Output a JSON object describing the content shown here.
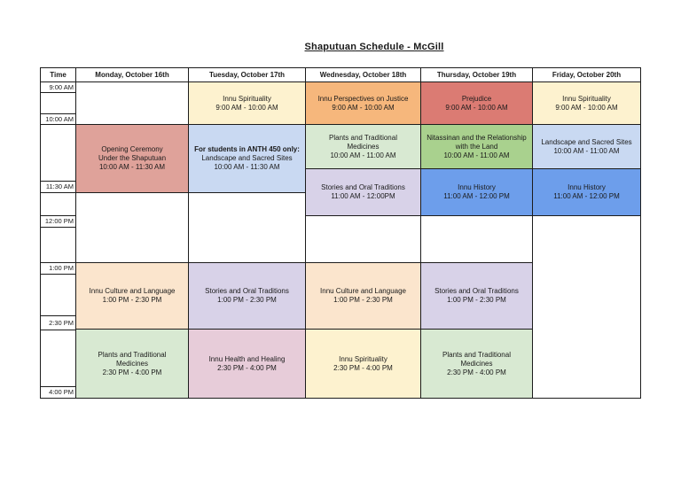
{
  "page": {
    "title": "Shaputuan Schedule - McGill"
  },
  "table": {
    "time_header": "Time",
    "days": [
      "Monday, October 16th",
      "Tuesday, October 17th",
      "Wednesday, October 18th",
      "Thursday, October 19th",
      "Friday, October 20th"
    ],
    "time_labels": [
      "9:00 AM",
      "10:00 AM",
      "11:30 AM",
      "12:00 PM",
      "1:00 PM",
      "2:30 PM",
      "4:00 PM"
    ],
    "colors": {
      "cream": "#fdf2cf",
      "orange": "#f6b77c",
      "red": "#db7b73",
      "rose": "#dfa29a",
      "lightblue": "#c9d9f2",
      "blue": "#6d9eeb",
      "lightgreen": "#d8e9d2",
      "green": "#a9d18e",
      "lavender": "#d8d2e8",
      "peach": "#fbe5cd",
      "pink": "#e7ccd9",
      "border": "#1c1c1c"
    },
    "events": [
      {
        "day": 0,
        "start": "10:00 AM",
        "end": "11:30 AM",
        "lines": [
          "Opening Ceremony",
          "Under the Shaputuan"
        ],
        "time_text": "10:00 AM - 11:30 AM",
        "color": "rose",
        "bold_first": false
      },
      {
        "day": 0,
        "start": "1:00 PM",
        "end": "2:30 PM",
        "lines": [
          "Innu Culture and Language"
        ],
        "time_text": "1:00 PM - 2:30 PM",
        "color": "peach",
        "bold_first": false
      },
      {
        "day": 0,
        "start": "2:30 PM",
        "end": "4:00 PM",
        "lines": [
          "Plants and Traditional",
          "Medicines"
        ],
        "time_text": "2:30 PM - 4:00 PM",
        "color": "lightgreen",
        "bold_first": false
      },
      {
        "day": 1,
        "start": "9:00 AM",
        "end": "10:00 AM",
        "lines": [
          "Innu Spirituality"
        ],
        "time_text": "9:00 AM - 10:00 AM",
        "color": "cream",
        "bold_first": false
      },
      {
        "day": 1,
        "start": "10:00 AM",
        "end": "11:30 AM",
        "lines": [
          "For students in ANTH 450 only:",
          "Landscape and Sacred Sites"
        ],
        "time_text": "10:00 AM - 11:30 AM",
        "color": "lightblue",
        "bold_first": true
      },
      {
        "day": 1,
        "start": "1:00 PM",
        "end": "2:30 PM",
        "lines": [
          "Stories and Oral Traditions"
        ],
        "time_text": "1:00 PM - 2:30 PM",
        "color": "lavender",
        "bold_first": false
      },
      {
        "day": 1,
        "start": "2:30 PM",
        "end": "4:00 PM",
        "lines": [
          "Innu Health and Healing"
        ],
        "time_text": "2:30 PM - 4:00 PM",
        "color": "pink",
        "bold_first": false
      },
      {
        "day": 2,
        "start": "9:00 AM",
        "end": "10:00 AM",
        "lines": [
          "Innu Perspectives on Justice"
        ],
        "time_text": "9:00 AM - 10:00 AM",
        "color": "orange",
        "bold_first": false
      },
      {
        "day": 2,
        "start": "10:00 AM",
        "end": "11:00 AM",
        "lines": [
          "Plants and Traditional",
          "Medicines"
        ],
        "time_text": "10:00 AM - 11:00 AM",
        "color": "lightgreen",
        "bold_first": false
      },
      {
        "day": 2,
        "start": "11:00 AM",
        "end": "12:00 PM",
        "lines": [
          "Stories and Oral Traditions"
        ],
        "time_text": "11:00 AM - 12:00PM",
        "color": "lavender",
        "bold_first": false
      },
      {
        "day": 2,
        "start": "1:00 PM",
        "end": "2:30 PM",
        "lines": [
          "Innu Culture and Language"
        ],
        "time_text": "1:00 PM - 2:30 PM",
        "color": "peach",
        "bold_first": false
      },
      {
        "day": 2,
        "start": "2:30 PM",
        "end": "4:00 PM",
        "lines": [
          "Innu Spirituality"
        ],
        "time_text": "2:30 PM - 4:00 PM",
        "color": "cream",
        "bold_first": false
      },
      {
        "day": 3,
        "start": "9:00 AM",
        "end": "10:00 AM",
        "lines": [
          "Prejudice"
        ],
        "time_text": "9:00 AM - 10:00 AM",
        "color": "red",
        "bold_first": false
      },
      {
        "day": 3,
        "start": "10:00 AM",
        "end": "11:00 AM",
        "lines": [
          "Nitassinan and the Relationship",
          "with the Land"
        ],
        "time_text": "10:00 AM - 11:00 AM",
        "color": "green",
        "bold_first": false
      },
      {
        "day": 3,
        "start": "11:00 AM",
        "end": "12:00 PM",
        "lines": [
          "Innu History"
        ],
        "time_text": "11:00 AM - 12:00 PM",
        "color": "blue",
        "bold_first": false
      },
      {
        "day": 3,
        "start": "1:00 PM",
        "end": "2:30 PM",
        "lines": [
          "Stories and Oral Traditions"
        ],
        "time_text": "1:00 PM - 2:30 PM",
        "color": "lavender",
        "bold_first": false
      },
      {
        "day": 3,
        "start": "2:30 PM",
        "end": "4:00 PM",
        "lines": [
          "Plants and Traditional",
          "Medicines"
        ],
        "time_text": "2:30 PM - 4:00 PM",
        "color": "lightgreen",
        "bold_first": false
      },
      {
        "day": 4,
        "start": "9:00 AM",
        "end": "10:00 AM",
        "lines": [
          "Innu Spirituality"
        ],
        "time_text": "9:00 AM - 10:00 AM",
        "color": "cream",
        "bold_first": false
      },
      {
        "day": 4,
        "start": "10:00 AM",
        "end": "11:00 AM",
        "lines": [
          "Landscape and Sacred Sites"
        ],
        "time_text": "10:00 AM - 11:00 AM",
        "color": "lightblue",
        "bold_first": false
      },
      {
        "day": 4,
        "start": "11:00 AM",
        "end": "12:00 PM",
        "lines": [
          "Innu History"
        ],
        "time_text": "11:00 AM - 12:00 PM",
        "color": "blue",
        "bold_first": false
      }
    ]
  }
}
